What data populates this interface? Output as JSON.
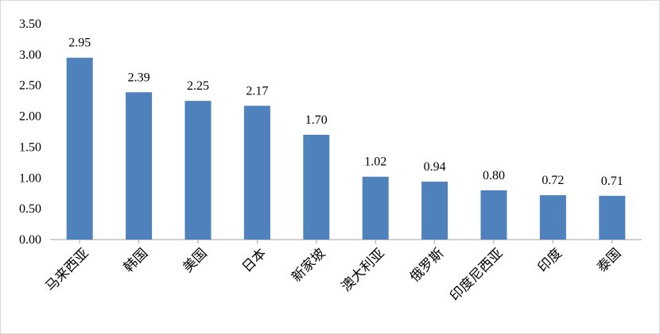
{
  "chart_data": {
    "type": "bar",
    "categories": [
      "马来西亚",
      "韩国",
      "美国",
      "日本",
      "新家坡",
      "澳大利亚",
      "俄罗斯",
      "印度尼西亚",
      "印度",
      "泰国"
    ],
    "values": [
      2.95,
      2.39,
      2.25,
      2.17,
      1.7,
      1.02,
      0.94,
      0.8,
      0.72,
      0.71
    ],
    "data_labels": [
      "2.95",
      "2.39",
      "2.25",
      "2.17",
      "1.70",
      "1.02",
      "0.94",
      "0.80",
      "0.72",
      "0.71"
    ],
    "y_ticks": [
      "0.00",
      "0.50",
      "1.00",
      "1.50",
      "2.00",
      "2.50",
      "3.00",
      "3.50"
    ],
    "ylim": [
      0,
      3.5
    ],
    "title": "",
    "xlabel": "",
    "ylabel": "",
    "grid": false,
    "legend": "none",
    "bar_color": "#4f81bd"
  }
}
